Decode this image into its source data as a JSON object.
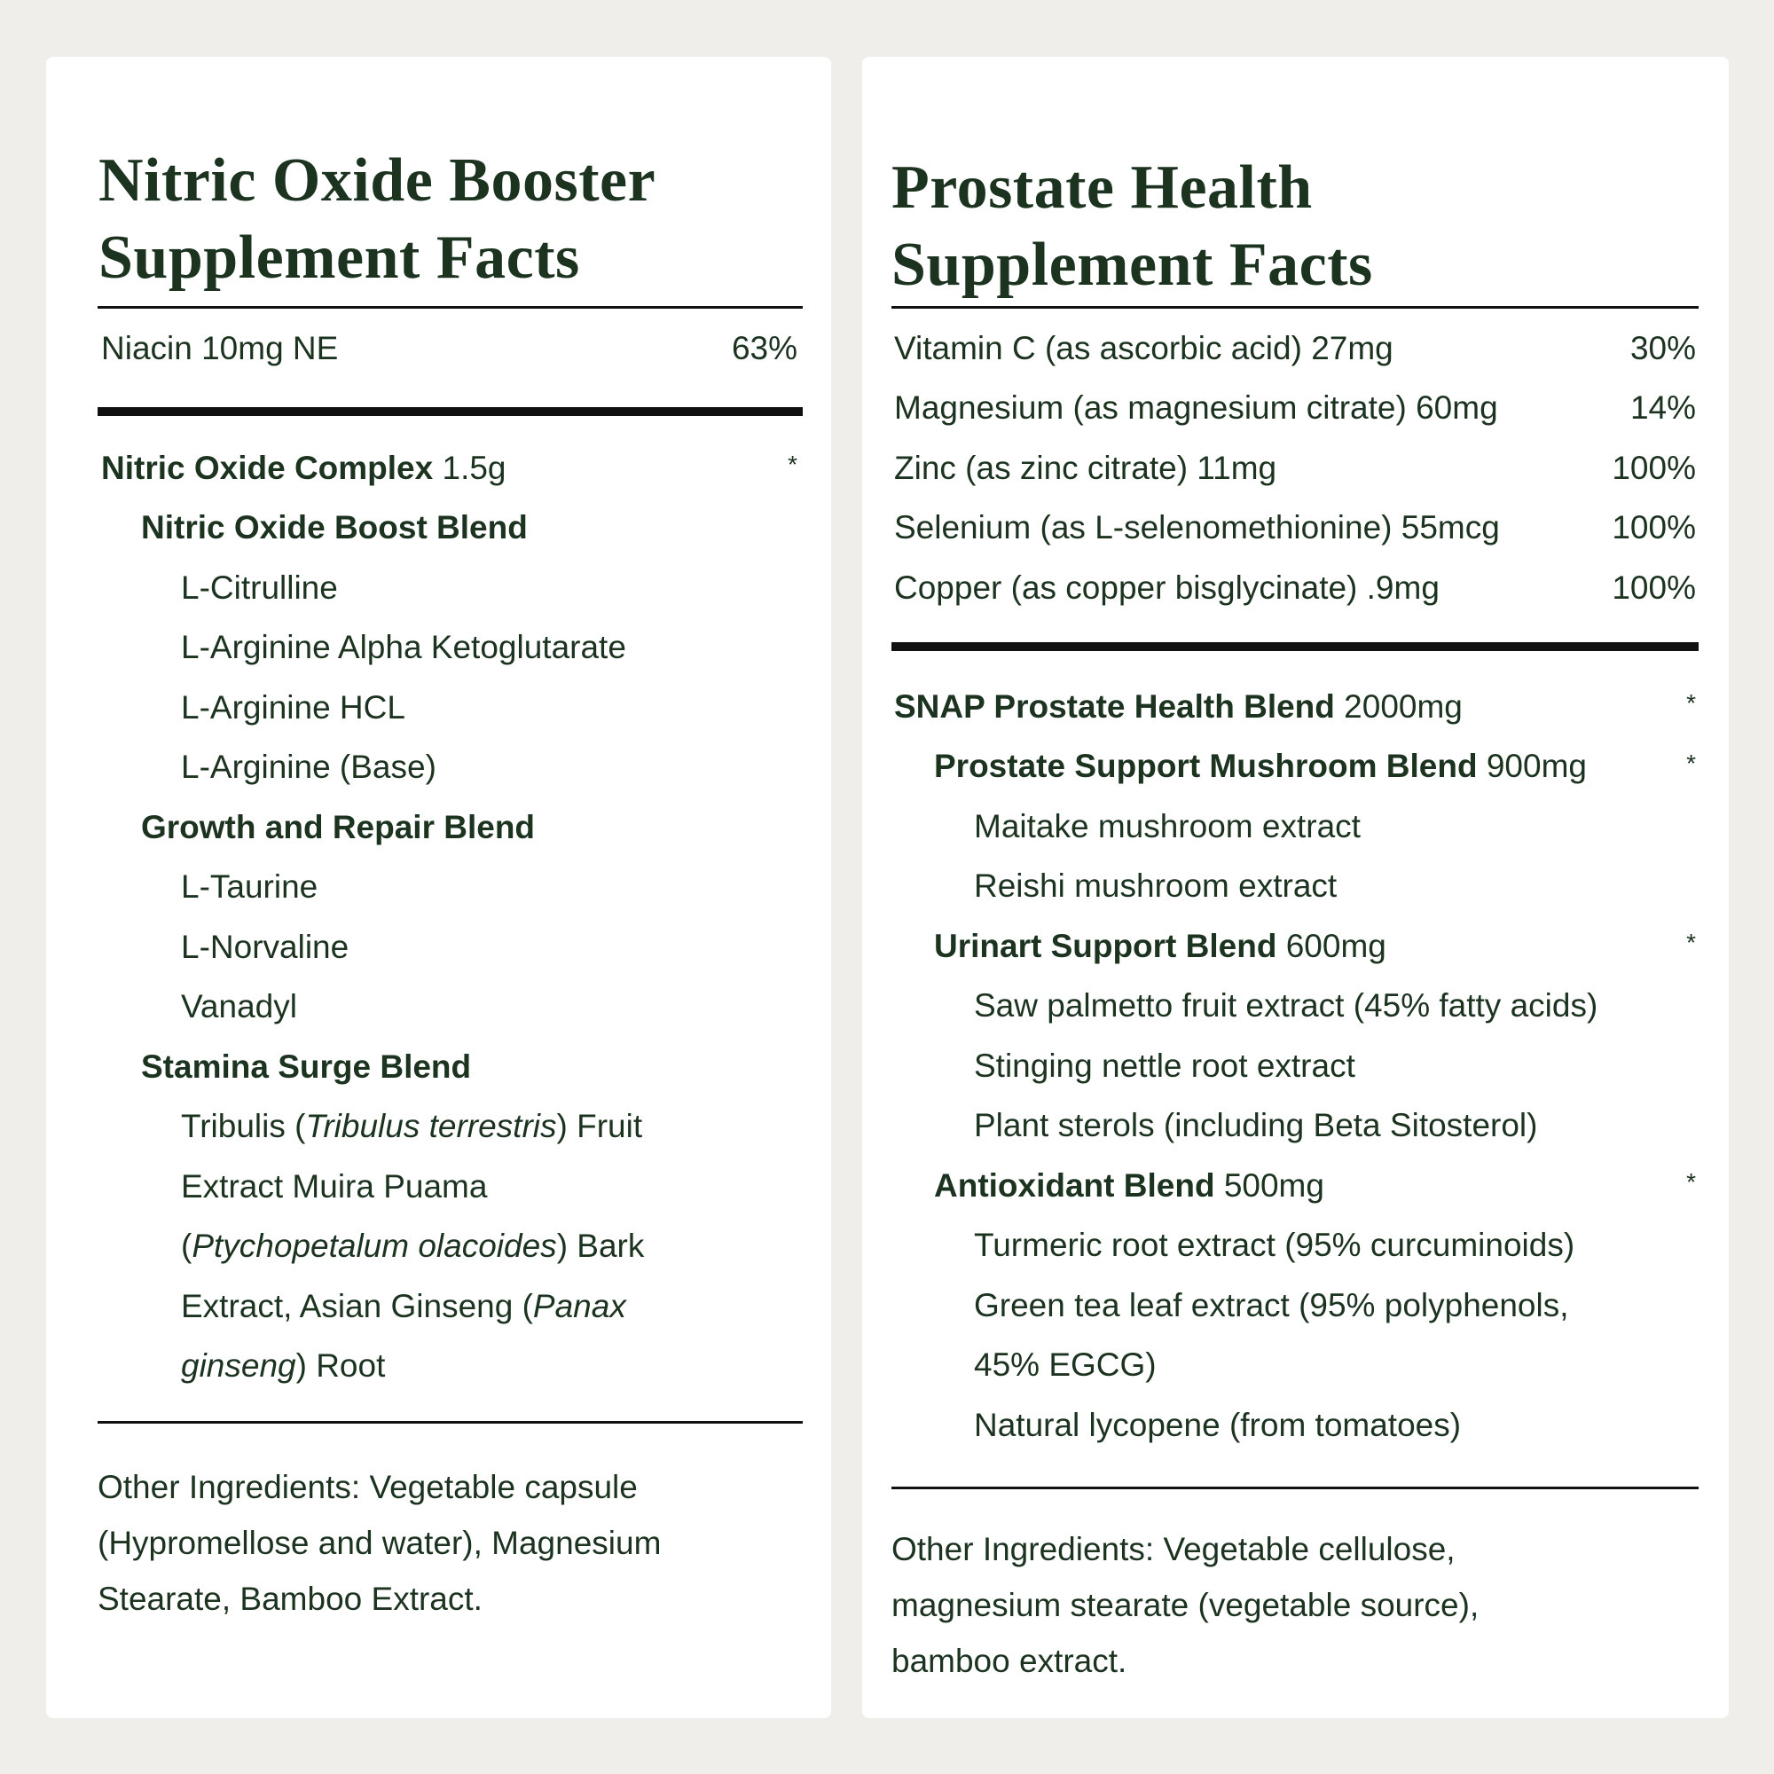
{
  "colors": {
    "text": "#1c3320",
    "background": "#efeeea",
    "card": "#ffffff",
    "rule": "#111111"
  },
  "left": {
    "title": [
      "Nitric Oxide Booster",
      "Supplement Facts"
    ],
    "vitamins": [
      {
        "segments": [
          {
            "t": "Niacin 10mg NE"
          }
        ],
        "value": "63%",
        "level": 0
      }
    ],
    "blends": [
      {
        "level": 0,
        "segments": [
          {
            "t": "Nitric Oxide Complex",
            "b": true
          },
          {
            "t": " 1.5g"
          }
        ],
        "star": "*"
      },
      {
        "level": 1,
        "segments": [
          {
            "t": "Nitric Oxide Boost Blend",
            "b": true
          }
        ]
      },
      {
        "level": 2,
        "segments": [
          {
            "t": "L-Citrulline"
          }
        ]
      },
      {
        "level": 2,
        "segments": [
          {
            "t": "L-Arginine Alpha Ketoglutarate"
          }
        ]
      },
      {
        "level": 2,
        "segments": [
          {
            "t": "L-Arginine HCL"
          }
        ]
      },
      {
        "level": 2,
        "segments": [
          {
            "t": "L-Arginine (Base)"
          }
        ]
      },
      {
        "level": 1,
        "segments": [
          {
            "t": "Growth and Repair Blend",
            "b": true
          }
        ]
      },
      {
        "level": 2,
        "segments": [
          {
            "t": "L-Taurine"
          }
        ]
      },
      {
        "level": 2,
        "segments": [
          {
            "t": "L-Norvaline"
          }
        ]
      },
      {
        "level": 2,
        "segments": [
          {
            "t": "Vanadyl"
          }
        ]
      },
      {
        "level": 1,
        "segments": [
          {
            "t": "Stamina Surge Blend",
            "b": true
          }
        ]
      },
      {
        "level": 2,
        "segments": [
          {
            "t": "Tribulis ("
          },
          {
            "t": "Tribulus terrestris",
            "i": true
          },
          {
            "t": ") Fruit"
          }
        ]
      },
      {
        "level": 2,
        "segments": [
          {
            "t": "Extract Muira Puama"
          }
        ]
      },
      {
        "level": 2,
        "segments": [
          {
            "t": "("
          },
          {
            "t": "Ptychopetalum olacoides",
            "i": true
          },
          {
            "t": ") Bark"
          }
        ]
      },
      {
        "level": 2,
        "segments": [
          {
            "t": "Extract, Asian Ginseng ("
          },
          {
            "t": "Panax",
            "i": true
          }
        ]
      },
      {
        "level": 2,
        "segments": [
          {
            "t": "ginseng",
            "i": true
          },
          {
            "t": ") Root"
          }
        ]
      }
    ],
    "other": [
      "Other Ingredients: Vegetable capsule",
      "(Hypromellose and water), Magnesium",
      "Stearate, Bamboo Extract."
    ]
  },
  "right": {
    "title": [
      "Prostate Health",
      "Supplement Facts"
    ],
    "vitamins": [
      {
        "level": 0,
        "segments": [
          {
            "t": "Vitamin C (as ascorbic acid) 27mg"
          }
        ],
        "value": "30%"
      },
      {
        "level": 0,
        "segments": [
          {
            "t": "Magnesium (as magnesium citrate) 60mg"
          }
        ],
        "value": "14%"
      },
      {
        "level": 0,
        "segments": [
          {
            "t": "Zinc (as zinc citrate) 11mg"
          }
        ],
        "value": "100%"
      },
      {
        "level": 0,
        "segments": [
          {
            "t": "Selenium (as L-selenomethionine) 55mcg"
          }
        ],
        "value": "100%"
      },
      {
        "level": 0,
        "segments": [
          {
            "t": "Copper (as copper bisglycinate) .9mg"
          }
        ],
        "value": "100%"
      }
    ],
    "blends": [
      {
        "level": 0,
        "segments": [
          {
            "t": "SNAP Prostate Health Blend",
            "b": true
          },
          {
            "t": " 2000mg"
          }
        ],
        "star": "*"
      },
      {
        "level": 1,
        "segments": [
          {
            "t": "Prostate Support Mushroom Blend",
            "b": true
          },
          {
            "t": " 900mg"
          }
        ],
        "star": "*"
      },
      {
        "level": 2,
        "segments": [
          {
            "t": "Maitake mushroom extract"
          }
        ]
      },
      {
        "level": 2,
        "segments": [
          {
            "t": "Reishi mushroom extract"
          }
        ]
      },
      {
        "level": 1,
        "segments": [
          {
            "t": "Urinart Support Blend",
            "b": true
          },
          {
            "t": " 600mg"
          }
        ],
        "star": "*"
      },
      {
        "level": 2,
        "segments": [
          {
            "t": "Saw palmetto fruit extract (45% fatty acids)"
          }
        ]
      },
      {
        "level": 2,
        "segments": [
          {
            "t": "Stinging nettle root extract"
          }
        ]
      },
      {
        "level": 2,
        "segments": [
          {
            "t": "Plant sterols (including Beta Sitosterol)"
          }
        ]
      },
      {
        "level": 1,
        "segments": [
          {
            "t": "Antioxidant Blend",
            "b": true
          },
          {
            "t": " 500mg"
          }
        ],
        "star": "*"
      },
      {
        "level": 2,
        "segments": [
          {
            "t": "Turmeric root extract (95% curcuminoids)"
          }
        ]
      },
      {
        "level": 2,
        "segments": [
          {
            "t": "Green tea leaf extract (95% polyphenols,"
          }
        ]
      },
      {
        "level": 2,
        "segments": [
          {
            "t": "45% EGCG)"
          }
        ]
      },
      {
        "level": 2,
        "segments": [
          {
            "t": "Natural lycopene (from tomatoes)"
          }
        ]
      }
    ],
    "other": [
      "Other Ingredients: Vegetable cellulose,",
      "magnesium stearate (vegetable source),",
      "bamboo extract."
    ]
  }
}
